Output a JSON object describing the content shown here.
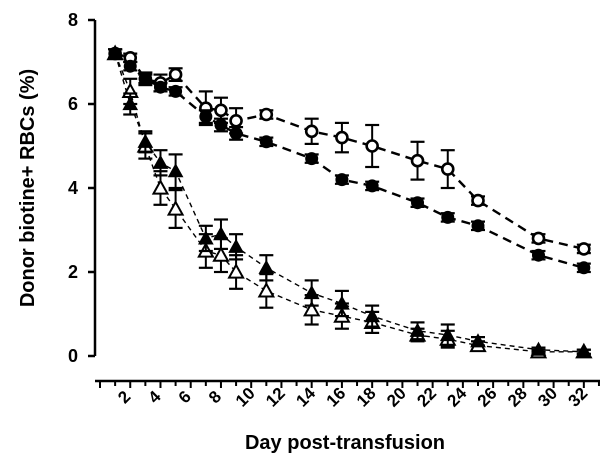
{
  "chart_data": {
    "type": "line",
    "xlabel": "Day post-transfusion",
    "ylabel": "Donor biotine+ RBCs (%)",
    "xlim": [
      0,
      33
    ],
    "ylim": [
      0,
      8
    ],
    "xticks": [
      "2",
      "4",
      "6",
      "8",
      "10",
      "12",
      "14",
      "16",
      "18",
      "20",
      "22",
      "24",
      "26",
      "28",
      "30",
      "32"
    ],
    "yticks": [
      "0",
      "2",
      "4",
      "6",
      "8"
    ],
    "grid": false,
    "series": [
      {
        "marker": "circle-filled",
        "line": "dashed",
        "color": "#000000",
        "x": [
          1,
          2,
          3,
          4,
          5,
          7,
          8,
          9,
          11,
          14,
          16,
          18,
          21,
          23,
          25,
          29,
          32
        ],
        "y": [
          7.2,
          6.9,
          6.6,
          6.4,
          6.3,
          5.7,
          5.5,
          5.3,
          5.1,
          4.7,
          4.2,
          4.05,
          3.65,
          3.3,
          3.1,
          2.4,
          2.1
        ],
        "err": [
          0.1,
          0.1,
          0.1,
          0.1,
          0.1,
          0.15,
          0.15,
          0.15,
          0.1,
          0.1,
          0.1,
          0.1,
          0.1,
          0.1,
          0.1,
          0.1,
          0.1
        ]
      },
      {
        "marker": "circle-open",
        "line": "dashed",
        "color": "#000000",
        "x": [
          1,
          2,
          3,
          4,
          5,
          7,
          8,
          9,
          11,
          14,
          16,
          18,
          21,
          23,
          25,
          29,
          32
        ],
        "y": [
          7.2,
          7.1,
          6.6,
          6.5,
          6.7,
          5.9,
          5.85,
          5.6,
          5.75,
          5.35,
          5.2,
          5.0,
          4.65,
          4.45,
          3.7,
          2.8,
          2.55
        ],
        "err": [
          0.1,
          0.1,
          0.15,
          0.2,
          0.15,
          0.4,
          0.3,
          0.3,
          0.1,
          0.3,
          0.35,
          0.5,
          0.45,
          0.45,
          0.1,
          0.1,
          0.1
        ]
      },
      {
        "marker": "triangle-filled",
        "line": "dashed",
        "color": "#000000",
        "x": [
          1,
          2,
          3,
          4,
          5,
          7,
          8,
          9,
          11,
          14,
          16,
          18,
          21,
          23,
          25,
          29,
          32
        ],
        "y": [
          7.2,
          6.0,
          5.1,
          4.6,
          4.4,
          2.8,
          2.9,
          2.6,
          2.1,
          1.5,
          1.25,
          0.95,
          0.6,
          0.5,
          0.35,
          0.15,
          0.1
        ],
        "err": [
          0.1,
          0.25,
          0.25,
          0.3,
          0.4,
          0.3,
          0.35,
          0.3,
          0.3,
          0.3,
          0.3,
          0.25,
          0.2,
          0.25,
          0.1,
          0.05,
          0.05
        ]
      },
      {
        "marker": "triangle-open",
        "line": "dashed",
        "color": "#000000",
        "x": [
          1,
          2,
          3,
          4,
          5,
          7,
          8,
          9,
          11,
          14,
          16,
          18,
          21,
          23,
          25,
          29,
          32
        ],
        "y": [
          7.2,
          6.3,
          5.0,
          4.0,
          3.5,
          2.5,
          2.4,
          2.0,
          1.55,
          1.1,
          0.95,
          0.8,
          0.5,
          0.4,
          0.25,
          0.1,
          0.1
        ],
        "err": [
          0.1,
          0.3,
          0.3,
          0.4,
          0.45,
          0.4,
          0.4,
          0.4,
          0.4,
          0.35,
          0.3,
          0.25,
          0.15,
          0.2,
          0.1,
          0.05,
          0.05
        ]
      }
    ]
  }
}
